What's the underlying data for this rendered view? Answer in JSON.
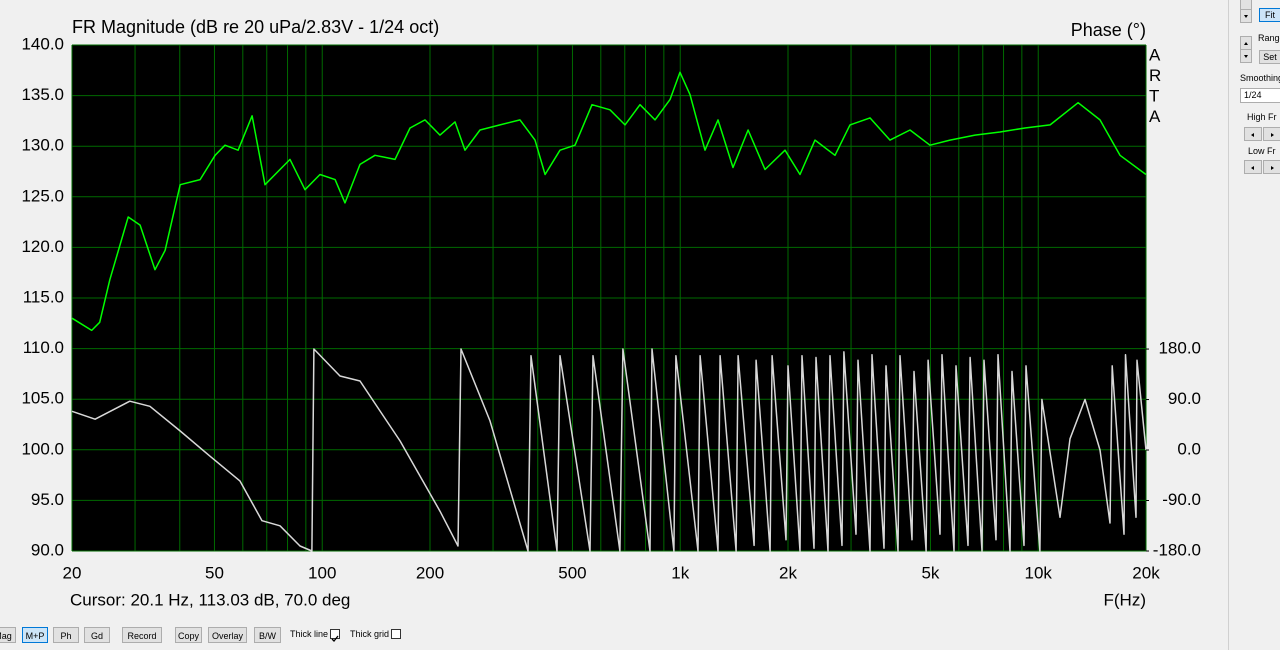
{
  "chart_data": {
    "type": "line",
    "title": "FR Magnitude (dB re 20 uPa/2.83V - 1/24 oct)",
    "y2_label": "Phase (°)",
    "x_label": "F(Hz)",
    "annotation": "Cursor: 20.1 Hz, 113.03 dB, 70.0 deg",
    "watermark_letters": [
      "A",
      "R",
      "T",
      "A"
    ],
    "xscale": "log",
    "grid": true,
    "background": "#000000",
    "grid_color": "#006a00",
    "xlim": [
      20,
      20000
    ],
    "xticks": [
      20,
      50,
      100,
      200,
      500,
      {
        "value": 1000,
        "label": "1k"
      },
      {
        "value": 2000,
        "label": "2k"
      },
      {
        "value": 5000,
        "label": "5k"
      },
      {
        "value": 10000,
        "label": "10k"
      },
      {
        "value": 20000,
        "label": "20k"
      }
    ],
    "xgrid": [
      30,
      40,
      60,
      70,
      80,
      90,
      300,
      400,
      600,
      700,
      800,
      900,
      3000,
      4000,
      6000,
      7000,
      8000,
      9000
    ],
    "ylim": [
      90,
      140
    ],
    "yticks": [
      {
        "value": 90,
        "label": "90.0"
      },
      {
        "value": 95,
        "label": "95.0"
      },
      {
        "value": 100,
        "label": "100.0"
      },
      {
        "value": 105,
        "label": "105.0"
      },
      {
        "value": 110,
        "label": "110.0"
      },
      {
        "value": 115,
        "label": "115.0"
      },
      {
        "value": 120,
        "label": "120.0"
      },
      {
        "value": 125,
        "label": "125.0"
      },
      {
        "value": 130,
        "label": "130.0"
      },
      {
        "value": 135,
        "label": "135.0"
      },
      {
        "value": 140,
        "label": "140.0"
      }
    ],
    "y2lim": [
      -180,
      722
    ],
    "y2ticks": [
      {
        "value": 180,
        "label": "180.0"
      },
      {
        "value": 90,
        "label": "90.0"
      },
      {
        "value": 0,
        "label": "0.0"
      },
      {
        "value": -90,
        "label": "-90.0"
      },
      {
        "value": -180,
        "label": "-180.0"
      }
    ],
    "series": [
      {
        "color": "#00ff00",
        "axis": "y",
        "x": [
          20,
          22.7,
          23.9,
          25.5,
          28.7,
          31.0,
          34.1,
          36.4,
          40.1,
          45.6,
          50.2,
          53.5,
          58.2,
          63.7,
          69.2,
          81.3,
          89.5,
          98.6,
          108.6,
          115.8,
          127.5,
          140.4,
          159.7,
          175.9,
          193.7,
          213.3,
          234.9,
          250.5,
          275.9,
          313.7,
          356.8,
          392.9,
          419.2,
          461.6,
          508.3,
          567,
          636.6,
          701,
          772,
          850.2,
          936.4,
          998.6,
          1065,
          1173,
          1275,
          1404,
          1547,
          1725,
          1962,
          2161,
          2380,
          2706,
          2980,
          3390,
          3855,
          4384,
          4985,
          5670,
          6660,
          7822,
          9187,
          10790,
          12920,
          14880,
          16920,
          20000
        ],
        "values": [
          113.0,
          111.8,
          112.6,
          116.8,
          123.0,
          122.2,
          117.8,
          119.7,
          126.2,
          126.7,
          129.1,
          130.1,
          129.6,
          133.0,
          126.2,
          128.7,
          125.7,
          127.2,
          126.7,
          124.4,
          128.2,
          129.1,
          128.7,
          131.8,
          132.6,
          131.1,
          132.4,
          129.6,
          131.6,
          132.1,
          132.6,
          130.6,
          127.2,
          129.6,
          130.1,
          134.1,
          133.6,
          132.1,
          134.1,
          132.6,
          134.6,
          137.3,
          135.1,
          129.6,
          132.6,
          127.9,
          131.6,
          127.7,
          129.6,
          127.2,
          130.6,
          129.1,
          132.1,
          132.8,
          130.6,
          131.6,
          130.1,
          130.6,
          131.1,
          131.4,
          131.8,
          132.1,
          134.3,
          132.6,
          129.1,
          127.2
        ]
      },
      {
        "color": "#d8d8d8",
        "axis": "y2",
        "x": [
          20,
          23.2,
          29.0,
          33.0,
          40.1,
          48.6,
          58.9,
          67.9,
          76.2,
          86.7,
          93.6,
          94.8,
          112.1,
          127.5,
          165,
          213.3,
          239.5,
          244.2,
          294.2,
          375.6,
          383,
          452.6,
          461.6,
          559.8,
          570.7,
          678.5,
          691.8,
          823.5,
          834.2,
          960.3,
          972.8,
          1121,
          1136,
          1275,
          1292,
          1432,
          1451,
          1608,
          1629,
          1782,
          1805,
          1975,
          2000,
          2161,
          2189,
          2364,
          2394,
          2587,
          2620,
          2830,
          2866,
          3097,
          3137,
          3390,
          3433,
          3708,
          3756,
          4058,
          4110,
          4441,
          4498,
          4861,
          4925,
          5317,
          5385,
          5818,
          5893,
          6366,
          6450,
          6964,
          7055,
          7621,
          7720,
          8340,
          8450,
          9126,
          9244,
          10110,
          10240,
          11500,
          12270,
          13510,
          14880,
          15870,
          16090,
          17360,
          17530,
          18760,
          18880,
          20000
        ],
        "values": [
          69,
          55,
          87,
          78,
          34,
          -11,
          -55,
          -126,
          -135,
          -171,
          -180,
          180,
          132,
          123,
          16,
          -109,
          -171,
          180,
          52,
          -180,
          168,
          -180,
          168,
          -180,
          168,
          -180,
          180,
          -180,
          180,
          -180,
          168,
          -180,
          168,
          -180,
          168,
          -180,
          168,
          -170,
          160,
          -180,
          168,
          -160,
          150,
          -180,
          168,
          -175,
          165,
          -180,
          168,
          -170,
          175,
          -150,
          160,
          -180,
          170,
          -175,
          150,
          -180,
          168,
          -160,
          140,
          -180,
          160,
          -150,
          170,
          -180,
          150,
          -170,
          165,
          -180,
          160,
          -160,
          170,
          -180,
          140,
          -170,
          150,
          -180,
          90,
          -120,
          20,
          90,
          0,
          -130,
          150,
          -150,
          170,
          -120,
          160,
          0
        ]
      }
    ]
  },
  "toolbar": {
    "buttons": [
      "Mag",
      "M+P",
      "Ph",
      "Gd",
      "Record",
      "Copy",
      "Overlay",
      "B/W"
    ],
    "selected": "M+P",
    "thick_line": "Thick line",
    "thick_line_checked": true,
    "thick_grid": "Thick grid",
    "thick_grid_checked": false
  },
  "side_panel": {
    "fit": "Fit",
    "range": "Range",
    "set": "Set",
    "smoothing": "Smoothing",
    "smoothing_value": "1/24",
    "high_fr": "High Fr",
    "low_fr": "Low Fr"
  }
}
